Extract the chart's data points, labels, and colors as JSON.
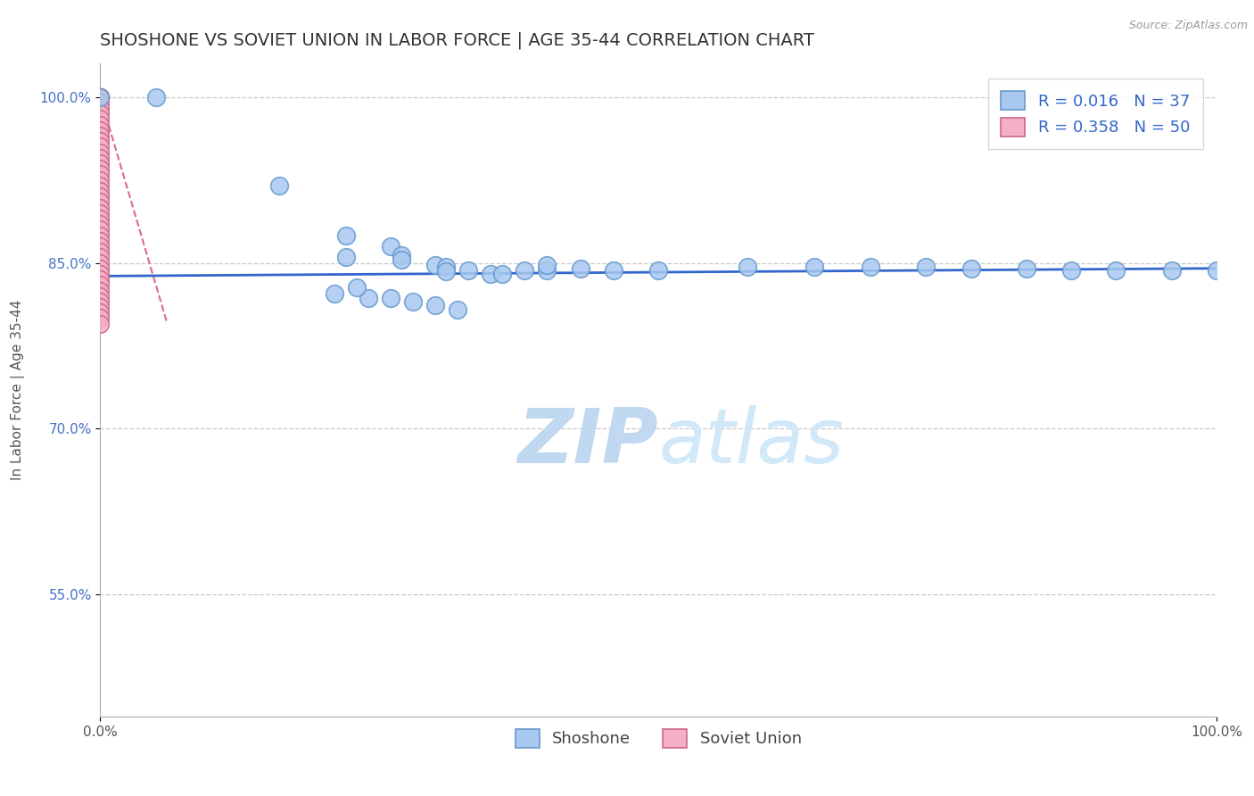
{
  "title": "SHOSHONE VS SOVIET UNION IN LABOR FORCE | AGE 35-44 CORRELATION CHART",
  "source_text": "Source: ZipAtlas.com",
  "ylabel": "In Labor Force | Age 35-44",
  "xlim": [
    0.0,
    1.0
  ],
  "ylim": [
    0.44,
    1.03
  ],
  "xtick_positions": [
    0.0,
    1.0
  ],
  "xtick_labels": [
    "0.0%",
    "100.0%"
  ],
  "ytick_values": [
    0.55,
    0.7,
    0.85,
    1.0
  ],
  "ytick_labels": [
    "55.0%",
    "70.0%",
    "85.0%",
    "100.0%"
  ],
  "background_color": "#ffffff",
  "grid_color": "#c8c8c8",
  "shoshone_x": [
    0.0,
    0.05,
    0.16,
    0.22,
    0.22,
    0.26,
    0.27,
    0.27,
    0.3,
    0.31,
    0.31,
    0.33,
    0.35,
    0.36,
    0.38,
    0.4,
    0.4,
    0.43,
    0.46,
    0.5,
    0.58,
    0.64,
    0.69,
    0.74,
    0.78,
    0.83,
    0.87,
    0.91,
    0.96,
    1.0,
    0.21,
    0.24,
    0.26,
    0.28,
    0.3,
    0.32,
    0.23
  ],
  "shoshone_y": [
    1.0,
    1.0,
    0.92,
    0.875,
    0.855,
    0.865,
    0.857,
    0.853,
    0.848,
    0.846,
    0.842,
    0.843,
    0.84,
    0.84,
    0.843,
    0.843,
    0.848,
    0.845,
    0.843,
    0.843,
    0.846,
    0.846,
    0.846,
    0.846,
    0.845,
    0.845,
    0.843,
    0.843,
    0.843,
    0.843,
    0.822,
    0.818,
    0.818,
    0.815,
    0.812,
    0.808,
    0.828
  ],
  "shoshone_color": "#a8c8f0",
  "shoshone_edge_color": "#6699cc",
  "shoshone_R": 0.016,
  "shoshone_N": 37,
  "soviet_x": [
    0.0,
    0.0,
    0.0,
    0.0,
    0.0,
    0.0,
    0.0,
    0.0,
    0.0,
    0.0,
    0.0,
    0.0,
    0.0,
    0.0,
    0.0,
    0.0,
    0.0,
    0.0,
    0.0,
    0.0,
    0.0,
    0.0,
    0.0,
    0.0,
    0.0,
    0.0,
    0.0,
    0.0,
    0.0,
    0.0,
    0.0,
    0.0,
    0.0,
    0.0,
    0.0,
    0.0,
    0.0,
    0.0,
    0.0,
    0.0,
    0.0,
    0.0,
    0.0,
    0.0,
    0.0,
    0.0,
    0.0,
    0.0,
    0.0,
    0.0
  ],
  "soviet_y": [
    1.0,
    1.0,
    1.0,
    1.0,
    1.0,
    1.0,
    1.0,
    1.0,
    1.0,
    0.995,
    0.99,
    0.985,
    0.98,
    0.975,
    0.97,
    0.965,
    0.96,
    0.955,
    0.95,
    0.945,
    0.94,
    0.935,
    0.93,
    0.925,
    0.92,
    0.915,
    0.91,
    0.905,
    0.9,
    0.895,
    0.89,
    0.885,
    0.88,
    0.875,
    0.87,
    0.865,
    0.86,
    0.855,
    0.85,
    0.845,
    0.84,
    0.835,
    0.83,
    0.825,
    0.82,
    0.815,
    0.81,
    0.805,
    0.8,
    0.795
  ],
  "soviet_color": "#f4b0c4",
  "soviet_edge_color": "#cc6688",
  "soviet_R": 0.358,
  "soviet_N": 50,
  "shoshone_trend_x": [
    0.0,
    1.0
  ],
  "shoshone_trend_y": [
    0.838,
    0.845
  ],
  "shoshone_trend_color": "#3366cc",
  "soviet_trend_x": [
    0.0,
    0.06
  ],
  "soviet_trend_y": [
    1.0,
    0.795
  ],
  "soviet_trend_color": "#dd6699",
  "legend_shoshone_color": "#a8c8f0",
  "legend_soviet_color": "#f4b0c4",
  "legend_text_color": "#3366cc",
  "watermark_zip": "ZIP",
  "watermark_atlas": "atlas",
  "watermark_color": "#c0d8f0",
  "marker_size": 200,
  "title_fontsize": 14,
  "axis_label_fontsize": 11,
  "tick_fontsize": 11,
  "legend_fontsize": 13
}
